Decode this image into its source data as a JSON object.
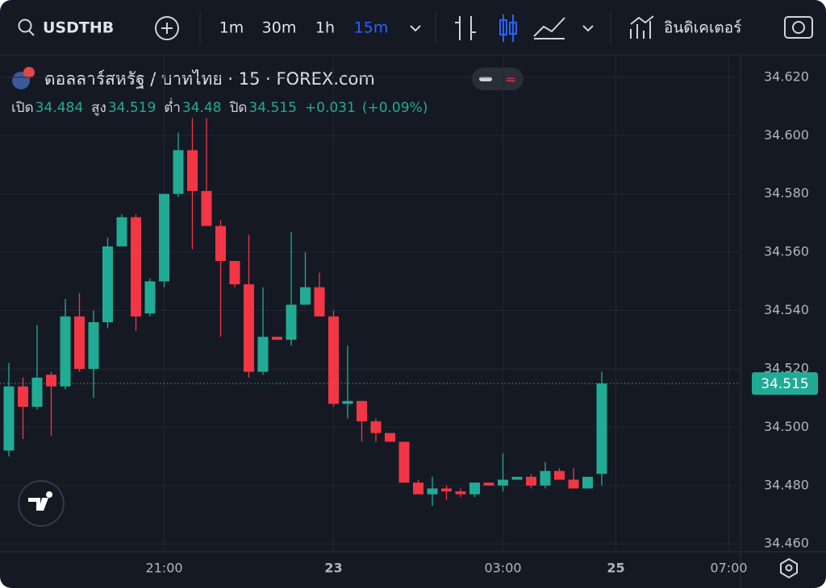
{
  "toolbar": {
    "symbol": "USDTHB",
    "intervals": [
      "1m",
      "30m",
      "1h",
      "15m"
    ],
    "indicators": "อินดิเคเตอร์"
  },
  "chart_data": {
    "type": "candlestick",
    "title": "ดอลลาร์สหรัฐ / บาทไทย · 15 · FOREX.com",
    "ohlc_labels": [
      "เปิด",
      "สูง",
      "ต่ำ",
      "ปิด"
    ],
    "change": "+0.031",
    "change_percent": "(+0.09%)",
    "categories": [
      null,
      null,
      null,
      null,
      null,
      null,
      null,
      null,
      null,
      null,
      null,
      "21:00",
      null,
      null,
      null,
      null,
      null,
      null,
      null,
      null,
      null,
      null,
      null,
      "23",
      null,
      null,
      null,
      null,
      null,
      null,
      null,
      null,
      null,
      null,
      null,
      "03:00",
      null,
      null,
      null,
      null,
      null,
      null,
      null,
      "25",
      null,
      null,
      null,
      null,
      null,
      null,
      null,
      "07:00"
    ],
    "open": [
      34.492,
      34.514,
      34.507,
      34.518,
      34.514,
      34.538,
      34.52,
      34.536,
      34.562,
      34.572,
      34.539,
      34.55,
      34.58,
      34.595,
      34.581,
      34.569,
      34.557,
      34.549,
      34.519,
      34.531,
      34.53,
      34.542,
      34.548,
      34.538,
      34.508,
      34.509,
      34.502,
      34.498,
      34.495,
      34.481,
      34.477,
      34.479,
      34.478,
      34.477,
      34.481,
      34.48,
      34.482,
      34.483,
      34.48,
      34.485,
      34.482,
      34.479,
      34.484,
      null,
      null,
      null,
      null,
      null,
      null,
      null,
      null,
      null
    ],
    "high": [
      34.522,
      34.517,
      34.535,
      34.519,
      34.544,
      34.546,
      34.54,
      34.565,
      34.573,
      34.573,
      34.551,
      34.58,
      34.601,
      34.606,
      34.606,
      34.571,
      34.557,
      34.566,
      34.548,
      34.531,
      34.567,
      34.56,
      34.553,
      34.54,
      34.528,
      34.509,
      34.503,
      34.498,
      34.495,
      34.482,
      34.483,
      34.48,
      34.479,
      34.481,
      34.481,
      34.491,
      34.483,
      34.484,
      34.488,
      34.486,
      34.486,
      34.483,
      34.519,
      null,
      null,
      null,
      null,
      null,
      null,
      null,
      null,
      null
    ],
    "low": [
      34.49,
      34.496,
      34.506,
      34.497,
      34.513,
      34.519,
      34.51,
      34.534,
      34.562,
      34.533,
      34.538,
      34.548,
      34.579,
      34.561,
      34.569,
      34.531,
      34.548,
      34.517,
      34.518,
      34.53,
      34.528,
      34.542,
      34.538,
      34.507,
      34.503,
      34.495,
      34.495,
      34.495,
      34.481,
      34.477,
      34.473,
      34.475,
      34.476,
      34.476,
      34.48,
      34.478,
      34.482,
      34.479,
      34.479,
      34.482,
      34.479,
      34.479,
      34.48,
      null,
      null,
      null,
      null,
      null,
      null,
      null,
      null,
      null
    ],
    "close": [
      34.514,
      34.507,
      34.517,
      34.514,
      34.538,
      34.52,
      34.536,
      34.562,
      34.572,
      34.538,
      34.55,
      34.58,
      34.595,
      34.581,
      34.569,
      34.557,
      34.549,
      34.519,
      34.531,
      34.53,
      34.542,
      34.548,
      34.538,
      34.508,
      34.509,
      34.502,
      34.498,
      34.495,
      34.481,
      34.477,
      34.479,
      34.478,
      34.477,
      34.481,
      34.48,
      34.482,
      34.483,
      34.48,
      34.485,
      34.482,
      34.479,
      34.483,
      34.515,
      null,
      null,
      null,
      null,
      null,
      null,
      null,
      null,
      null
    ],
    "ylim": [
      34.4573,
      34.6277
    ],
    "yticks": [
      {
        "value": 34.46,
        "label": "34.460"
      },
      {
        "value": 34.48,
        "label": "34.480"
      },
      {
        "value": 34.5,
        "label": "34.500"
      },
      {
        "value": 34.52,
        "label": "34.520"
      },
      {
        "value": 34.54,
        "label": "34.540"
      },
      {
        "value": 34.56,
        "label": "34.560"
      },
      {
        "value": 34.58,
        "label": "34.580"
      },
      {
        "value": 34.6,
        "label": "34.600"
      },
      {
        "value": 34.62,
        "label": "34.620"
      }
    ],
    "last_price": 34.515,
    "up_color": "#22ab94",
    "down_color": "#f23645",
    "grid": true
  }
}
